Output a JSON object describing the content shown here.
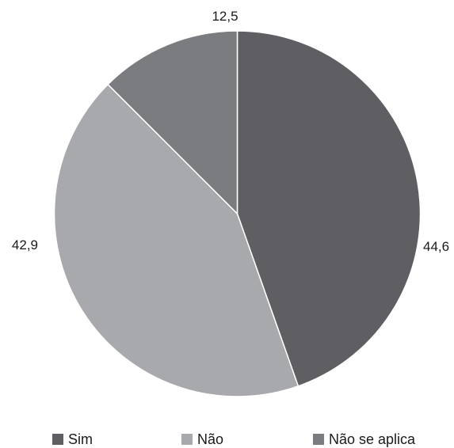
{
  "chart_data": {
    "type": "pie",
    "categories": [
      "Sim",
      "Não",
      "Não se aplica"
    ],
    "values": [
      44.6,
      42.9,
      12.5
    ],
    "data_labels": [
      "44,6",
      "42,9",
      "12,5"
    ],
    "colors": [
      "#5f5f63",
      "#a8a9ac",
      "#7b7c7f"
    ],
    "start": "twelve o'clock",
    "direction": "clockwise",
    "legend": {
      "position": "bottom",
      "items": [
        {
          "label": "Sim",
          "color": "#5f5f63"
        },
        {
          "label": "Não",
          "color": "#a8a9ac"
        },
        {
          "label": "Não se aplica",
          "color": "#7b7c7f"
        }
      ]
    }
  }
}
